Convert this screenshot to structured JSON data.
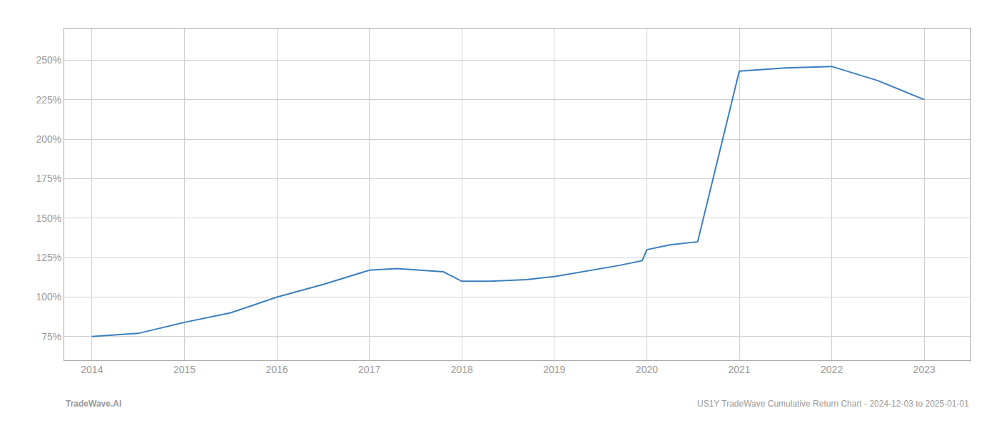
{
  "chart_data": {
    "type": "line",
    "x": [
      2014.0,
      2014.5,
      2015.0,
      2015.5,
      2016.0,
      2016.5,
      2017.0,
      2017.3,
      2017.8,
      2018.0,
      2018.3,
      2018.7,
      2019.0,
      2019.4,
      2019.7,
      2019.95,
      2020.0,
      2020.25,
      2020.55,
      2021.0,
      2021.5,
      2022.0,
      2022.5,
      2023.0
    ],
    "values": [
      75,
      77,
      84,
      90,
      100,
      108,
      117,
      118,
      116,
      110,
      110,
      111,
      113,
      117,
      120,
      123,
      130,
      133,
      135,
      243,
      245,
      246,
      237,
      225
    ],
    "color": "#3a7ebf",
    "xlim": [
      2013.7,
      2023.5
    ],
    "ylim": [
      60,
      270
    ],
    "xticks": [
      2014,
      2015,
      2016,
      2017,
      2018,
      2019,
      2020,
      2021,
      2022,
      2023
    ],
    "yticks": [
      {
        "value": 75,
        "label": "75%"
      },
      {
        "value": 100,
        "label": "100%"
      },
      {
        "value": 125,
        "label": "125%"
      },
      {
        "value": 150,
        "label": "150%"
      },
      {
        "value": 175,
        "label": "175%"
      },
      {
        "value": 200,
        "label": "200%"
      },
      {
        "value": 225,
        "label": "225%"
      },
      {
        "value": 250,
        "label": "250%"
      }
    ],
    "grid": true,
    "annotations": [
      "TradeWave.AI",
      "US1Y TradeWave Cumulative Return Chart - 2024-12-03 to 2025-01-01"
    ]
  }
}
